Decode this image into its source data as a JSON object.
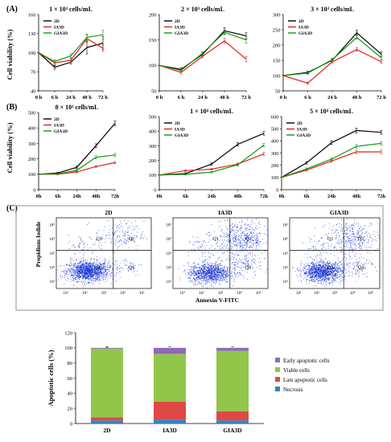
{
  "figure": {
    "panel_labels": [
      "(A)",
      "(B)",
      "(C)"
    ],
    "row_a_ylabel": "Cell viability (%)",
    "row_b_ylabel": "Cell viability (%)"
  },
  "colors": {
    "2D": "#000000",
    "IA3D": "#e02020",
    "GIA3D": "#119911",
    "flow_dots": "#1f3bd6",
    "necrosis": "#2e86c1",
    "late": "#e04848",
    "viable": "#92c64b",
    "early": "#8e6bb7"
  },
  "chart_data": [
    {
      "type": "line",
      "panel": "A",
      "title": "1 × 10³ cells/mL",
      "x": [
        "0 h",
        "6 h",
        "24 h",
        "48 h",
        "72 h"
      ],
      "yticks": [
        40,
        70,
        100,
        130,
        160
      ],
      "ylim": [
        40,
        160
      ],
      "ylabel": "Cell viability (%)",
      "legend": "top-left",
      "series": [
        {
          "name": "2D",
          "values": [
            100,
            77,
            85,
            108,
            115
          ],
          "errors": [
            0,
            3,
            3,
            10,
            10
          ]
        },
        {
          "name": "IA3D",
          "values": [
            100,
            84,
            88,
            122,
            107
          ],
          "errors": [
            0,
            3,
            3,
            6,
            5
          ]
        },
        {
          "name": "GIA3D",
          "values": [
            100,
            86,
            95,
            124,
            128
          ],
          "errors": [
            0,
            3,
            3,
            5,
            7
          ]
        }
      ]
    },
    {
      "type": "line",
      "panel": "A",
      "title": "2 × 10³ cells/mL",
      "x": [
        "0 h",
        "6 h",
        "24 h",
        "48 h",
        "72 h"
      ],
      "yticks": [
        50,
        100,
        150,
        200
      ],
      "ylim": [
        50,
        200
      ],
      "legend": "top-left",
      "series": [
        {
          "name": "2D",
          "values": [
            100,
            92,
            122,
            168,
            158
          ],
          "errors": [
            0,
            3,
            3,
            6,
            6
          ]
        },
        {
          "name": "IA3D",
          "values": [
            100,
            86,
            118,
            148,
            112
          ],
          "errors": [
            0,
            3,
            3,
            5,
            5
          ]
        },
        {
          "name": "GIA3D",
          "values": [
            100,
            90,
            124,
            165,
            150
          ],
          "errors": [
            0,
            3,
            3,
            5,
            6
          ]
        }
      ]
    },
    {
      "type": "line",
      "panel": "A",
      "title": "3 × 10³ cells/mL",
      "x": [
        "0 h",
        "6 h",
        "24 h",
        "48 h",
        "72 h"
      ],
      "yticks": [
        50,
        100,
        150,
        200,
        250,
        300
      ],
      "ylim": [
        50,
        300
      ],
      "legend": "top-left",
      "series": [
        {
          "name": "2D",
          "values": [
            100,
            110,
            150,
            240,
            170
          ],
          "errors": [
            0,
            4,
            5,
            8,
            7
          ]
        },
        {
          "name": "IA3D",
          "values": [
            100,
            75,
            145,
            185,
            145
          ],
          "errors": [
            0,
            3,
            4,
            6,
            5
          ]
        },
        {
          "name": "GIA3D",
          "values": [
            100,
            108,
            152,
            225,
            158
          ],
          "errors": [
            0,
            4,
            5,
            6,
            5
          ]
        }
      ]
    },
    {
      "type": "line",
      "panel": "B",
      "title": "8 × 10³ cells/mL",
      "x": [
        "0h",
        "6h",
        "24h",
        "48h",
        "72h"
      ],
      "yticks": [
        0,
        100,
        200,
        300,
        400,
        500
      ],
      "ylim": [
        0,
        500
      ],
      "ylabel": "Cell viability (%)",
      "legend": "top-left",
      "series": [
        {
          "name": "2D",
          "values": [
            100,
            108,
            145,
            285,
            430
          ],
          "errors": [
            0,
            5,
            8,
            12,
            15
          ]
        },
        {
          "name": "IA3D",
          "values": [
            100,
            100,
            115,
            150,
            175
          ],
          "errors": [
            0,
            4,
            5,
            6,
            7
          ]
        },
        {
          "name": "GIA3D",
          "values": [
            100,
            102,
            125,
            210,
            225
          ],
          "errors": [
            0,
            4,
            5,
            10,
            10
          ]
        }
      ]
    },
    {
      "type": "line",
      "panel": "B",
      "title": "1 × 10⁴ cells/mL",
      "x": [
        "0h",
        "6h",
        "24h",
        "48h",
        "72h"
      ],
      "yticks": [
        0,
        100,
        200,
        300,
        400,
        500
      ],
      "ylim": [
        0,
        500
      ],
      "legend": "top-left",
      "series": [
        {
          "name": "2D",
          "values": [
            100,
            110,
            175,
            310,
            385
          ],
          "errors": [
            0,
            5,
            8,
            12,
            12
          ]
        },
        {
          "name": "IA3D",
          "values": [
            100,
            130,
            140,
            175,
            245
          ],
          "errors": [
            0,
            5,
            5,
            7,
            10
          ]
        },
        {
          "name": "GIA3D",
          "values": [
            100,
            105,
            120,
            170,
            305
          ],
          "errors": [
            0,
            5,
            5,
            8,
            12
          ]
        }
      ]
    },
    {
      "type": "line",
      "panel": "B",
      "title": "5 × 10⁴ cells/mL",
      "x": [
        "0h",
        "6h",
        "24h",
        "48h",
        "72h"
      ],
      "yticks": [
        0,
        100,
        200,
        300,
        400,
        500,
        600
      ],
      "ylim": [
        0,
        600
      ],
      "legend": "top-left",
      "series": [
        {
          "name": "2D",
          "values": [
            100,
            220,
            385,
            485,
            470
          ],
          "errors": [
            0,
            10,
            15,
            20,
            15
          ]
        },
        {
          "name": "IA3D",
          "values": [
            100,
            160,
            235,
            310,
            310
          ],
          "errors": [
            0,
            8,
            10,
            15,
            15
          ]
        },
        {
          "name": "GIA3D",
          "values": [
            100,
            170,
            250,
            355,
            380
          ],
          "errors": [
            0,
            8,
            10,
            15,
            15
          ]
        }
      ]
    },
    {
      "type": "scatter",
      "panel": "C",
      "xlabel": "Annexin V-FITC",
      "ylabel": "Propidium Iodide",
      "x_ticks": [
        "10¹",
        "10²",
        "10³",
        "10⁴",
        "10⁵"
      ],
      "y_ticks": [
        "10¹",
        "10²",
        "10³",
        "10⁴",
        "10⁵"
      ],
      "quadrant_labels": [
        "Q1",
        "Q2",
        "Q3",
        "Q4"
      ],
      "plots": [
        {
          "name": "2D",
          "clusters": [
            {
              "cx": 0.33,
              "cy": 0.25,
              "sx": 0.11,
              "sy": 0.07,
              "n": 1500
            },
            {
              "cx": 0.66,
              "cy": 0.75,
              "sx": 0.13,
              "sy": 0.1,
              "n": 180
            },
            {
              "cx": 0.72,
              "cy": 0.32,
              "sx": 0.1,
              "sy": 0.07,
              "n": 60
            },
            {
              "cx": 0.28,
              "cy": 0.6,
              "sx": 0.08,
              "sy": 0.08,
              "n": 50
            }
          ]
        },
        {
          "name": "IA3D",
          "clusters": [
            {
              "cx": 0.38,
              "cy": 0.22,
              "sx": 0.11,
              "sy": 0.07,
              "n": 1100
            },
            {
              "cx": 0.72,
              "cy": 0.7,
              "sx": 0.14,
              "sy": 0.13,
              "n": 550
            },
            {
              "cx": 0.72,
              "cy": 0.33,
              "sx": 0.11,
              "sy": 0.08,
              "n": 150
            },
            {
              "cx": 0.3,
              "cy": 0.6,
              "sx": 0.08,
              "sy": 0.08,
              "n": 60
            }
          ]
        },
        {
          "name": "GIA3D",
          "clusters": [
            {
              "cx": 0.36,
              "cy": 0.24,
              "sx": 0.11,
              "sy": 0.07,
              "n": 1300
            },
            {
              "cx": 0.7,
              "cy": 0.72,
              "sx": 0.14,
              "sy": 0.12,
              "n": 380
            },
            {
              "cx": 0.72,
              "cy": 0.33,
              "sx": 0.11,
              "sy": 0.08,
              "n": 120
            },
            {
              "cx": 0.3,
              "cy": 0.6,
              "sx": 0.08,
              "sy": 0.08,
              "n": 55
            }
          ]
        }
      ]
    },
    {
      "type": "bar",
      "panel": "C",
      "stacked": true,
      "categories": [
        "2D",
        "IA3D",
        "GIA3D"
      ],
      "ylabel": "Apoptotic cells (%)",
      "yticks": [
        0,
        20,
        40,
        60,
        80,
        100,
        120
      ],
      "ylim": [
        0,
        120
      ],
      "legend": "right",
      "series": [
        {
          "name": "Necrosis",
          "values": [
            4,
            5,
            4
          ]
        },
        {
          "name": "Late apoptotic cells",
          "values": [
            4,
            24,
            12
          ]
        },
        {
          "name": "Viable cells",
          "values": [
            91,
            63,
            80
          ]
        },
        {
          "name": "Early apoptotic cells",
          "values": [
            1,
            8,
            4
          ]
        }
      ],
      "legend_order": [
        "Early apoptotic cells",
        "Viable cells",
        "Late apoptotic cells",
        "Necrosis"
      ]
    }
  ]
}
